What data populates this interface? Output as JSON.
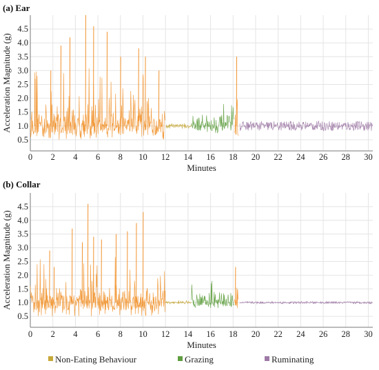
{
  "legend": [
    {
      "label": "Non-Eating Behaviour",
      "color": "#c7a93a"
    },
    {
      "label": "Grazing",
      "color": "#5f9e3f"
    },
    {
      "label": "Ruminating",
      "color": "#9e7aa6"
    }
  ],
  "colors": {
    "non_eating_orange": "#f1922c",
    "non_eating_olive": "#c7a93a",
    "grazing": "#5f9e3f",
    "ruminating": "#9e7aa6"
  },
  "chart_data": [
    {
      "type": "line",
      "title": "(a) Ear",
      "xlabel": "Minutes",
      "ylabel": "Acceleration Magnitude (g)",
      "xlim": [
        0,
        30.4
      ],
      "ylim": [
        0.1,
        5.0
      ],
      "xticks": [
        "0",
        "2",
        "4",
        "6",
        "8",
        "10",
        "12",
        "14",
        "16",
        "18",
        "20",
        "22",
        "24",
        "26",
        "28",
        "30"
      ],
      "yticks": [
        "0.5",
        "1.0",
        "1.5",
        "2.0",
        "2.5",
        "3.0",
        "3.5",
        "4.0",
        "4.5"
      ],
      "grid": true,
      "segments": [
        {
          "name": "Non-Eating Behaviour",
          "x_range": [
            0,
            12.0
          ],
          "baseline": 1.0,
          "typical_range": [
            0.5,
            1.8
          ],
          "max": 5.0
        },
        {
          "name": "Non-Eating Behaviour",
          "x_range": [
            12.0,
            14.3
          ],
          "baseline": 1.0,
          "typical_range": [
            0.9,
            1.1
          ],
          "max": 1.2
        },
        {
          "name": "Grazing",
          "x_range": [
            14.3,
            18.1
          ],
          "baseline": 1.0,
          "typical_range": [
            0.7,
            1.4
          ],
          "max": 1.8
        },
        {
          "name": "Non-Eating Behaviour",
          "x_range": [
            18.1,
            18.5
          ],
          "baseline": 1.0,
          "typical_range": [
            0.6,
            2.0
          ],
          "max": 3.6
        },
        {
          "name": "Ruminating",
          "x_range": [
            18.6,
            30.4
          ],
          "baseline": 1.0,
          "typical_range": [
            0.85,
            1.2
          ],
          "max": 1.3
        }
      ],
      "peaks": [
        [
          0.4,
          2.7
        ],
        [
          1.8,
          3.0
        ],
        [
          2.7,
          3.9
        ],
        [
          3.5,
          4.2
        ],
        [
          4.9,
          5.0
        ],
        [
          5.6,
          4.6
        ],
        [
          6.8,
          4.4
        ],
        [
          8.0,
          3.5
        ],
        [
          9.6,
          3.8
        ],
        [
          10.2,
          3.5
        ],
        [
          11.4,
          3.0
        ],
        [
          18.3,
          3.5
        ]
      ]
    },
    {
      "type": "line",
      "title": "(b) Collar",
      "xlabel": "Minutes",
      "ylabel": "Acceleration Magnitude (g)",
      "xlim": [
        0,
        30.4
      ],
      "ylim": [
        0.1,
        5.0
      ],
      "xticks": [
        "0",
        "2",
        "4",
        "6",
        "8",
        "10",
        "12",
        "14",
        "16",
        "18",
        "20",
        "22",
        "24",
        "26",
        "28",
        "30"
      ],
      "yticks": [
        "0.5",
        "1.0",
        "1.5",
        "2.0",
        "2.5",
        "3.0",
        "3.5",
        "4.0",
        "4.5"
      ],
      "grid": true,
      "segments": [
        {
          "name": "Non-Eating Behaviour",
          "x_range": [
            0,
            12.0
          ],
          "baseline": 1.0,
          "typical_range": [
            0.5,
            1.6
          ],
          "max": 4.6
        },
        {
          "name": "Non-Eating Behaviour",
          "x_range": [
            12.0,
            14.3
          ],
          "baseline": 1.0,
          "typical_range": [
            0.95,
            1.05
          ],
          "max": 1.1
        },
        {
          "name": "Grazing",
          "x_range": [
            14.3,
            18.1
          ],
          "baseline": 1.0,
          "typical_range": [
            0.8,
            1.4
          ],
          "max": 1.9
        },
        {
          "name": "Non-Eating Behaviour",
          "x_range": [
            18.1,
            18.5
          ],
          "baseline": 1.0,
          "typical_range": [
            0.7,
            1.6
          ],
          "max": 2.4
        },
        {
          "name": "Ruminating",
          "x_range": [
            18.6,
            30.4
          ],
          "baseline": 1.0,
          "typical_range": [
            0.96,
            1.04
          ],
          "max": 1.08
        }
      ],
      "peaks": [
        [
          1.7,
          2.9
        ],
        [
          2.1,
          2.3
        ],
        [
          3.7,
          3.7
        ],
        [
          4.6,
          3.2
        ],
        [
          5.1,
          4.6
        ],
        [
          5.6,
          3.4
        ],
        [
          6.3,
          3.3
        ],
        [
          7.6,
          3.5
        ],
        [
          8.6,
          3.6
        ],
        [
          9.4,
          3.9
        ],
        [
          10.0,
          4.3
        ],
        [
          18.2,
          2.3
        ]
      ]
    }
  ]
}
